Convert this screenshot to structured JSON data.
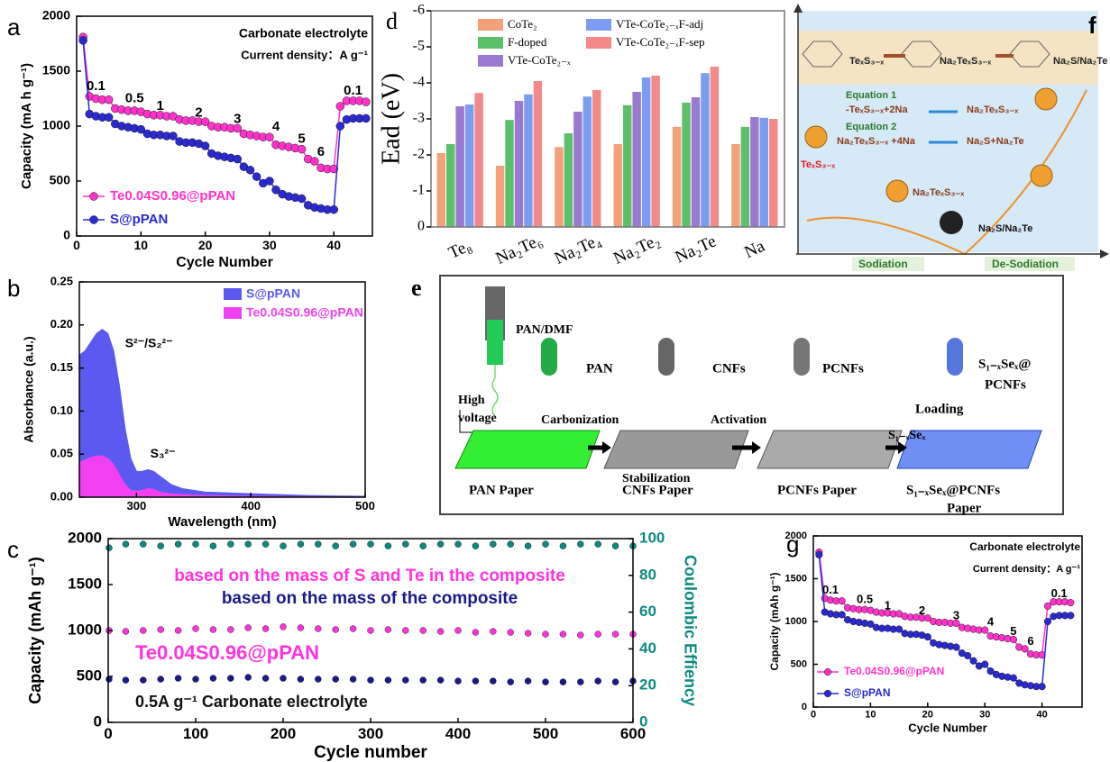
{
  "chart_data": [
    {
      "type": "line",
      "label": "a",
      "title": "Carbonate electrolyte",
      "subtitle": "Current density：A g⁻¹",
      "xlabel": "Cycle Number",
      "ylabel": "Capacity (mA h g⁻¹)",
      "x": [
        1,
        2,
        3,
        4,
        5,
        6,
        7,
        8,
        9,
        10,
        11,
        12,
        13,
        14,
        15,
        16,
        17,
        18,
        19,
        20,
        21,
        22,
        23,
        24,
        25,
        26,
        27,
        28,
        29,
        30,
        31,
        32,
        33,
        34,
        35,
        36,
        37,
        38,
        39,
        40,
        41,
        42,
        43,
        44,
        45
      ],
      "series": [
        {
          "name": "Te0.04S0.96@pPAN",
          "color": "#ff33cc",
          "values": [
            1810,
            1270,
            1250,
            1240,
            1240,
            1160,
            1150,
            1140,
            1140,
            1130,
            1110,
            1100,
            1100,
            1090,
            1090,
            1060,
            1050,
            1050,
            1040,
            1040,
            1000,
            990,
            990,
            980,
            980,
            930,
            920,
            910,
            900,
            900,
            830,
            820,
            810,
            800,
            790,
            700,
            680,
            620,
            610,
            610,
            1180,
            1230,
            1230,
            1230,
            1220
          ]
        },
        {
          "name": "S@pPAN",
          "color": "#2a2ad0",
          "values": [
            1780,
            1110,
            1090,
            1080,
            1080,
            1020,
            1000,
            990,
            980,
            970,
            930,
            920,
            920,
            910,
            910,
            860,
            850,
            850,
            840,
            820,
            750,
            730,
            720,
            710,
            700,
            630,
            600,
            540,
            480,
            500,
            420,
            380,
            360,
            350,
            340,
            280,
            260,
            250,
            240,
            240,
            1000,
            1060,
            1070,
            1070,
            1070
          ]
        }
      ],
      "annotations": [
        "0.1",
        "0.5",
        "1",
        "2",
        "3",
        "4",
        "5",
        "6",
        "0.1"
      ],
      "xlim": [
        0,
        46
      ],
      "xticks": [
        0,
        10,
        20,
        30,
        40
      ],
      "ylim": [
        0,
        2000
      ],
      "yticks": [
        0,
        500,
        1000,
        1500,
        2000
      ]
    },
    {
      "type": "area",
      "label": "b",
      "xlabel": "Wavelength (nm)",
      "ylabel": "Absorbance (a.u.)",
      "x": [
        250,
        255,
        260,
        265,
        270,
        275,
        280,
        285,
        290,
        295,
        300,
        305,
        310,
        315,
        320,
        330,
        340,
        360,
        400,
        450,
        500
      ],
      "series": [
        {
          "name": "S@pPAN",
          "color": "#5a5af0",
          "values": [
            0.165,
            0.17,
            0.18,
            0.19,
            0.195,
            0.19,
            0.17,
            0.13,
            0.08,
            0.045,
            0.03,
            0.03,
            0.032,
            0.03,
            0.025,
            0.015,
            0.01,
            0.006,
            0.004,
            0.002,
            0.001
          ]
        },
        {
          "name": "Te0.04S0.96@pPAN",
          "color": "#f040f0",
          "values": [
            0.04,
            0.043,
            0.046,
            0.048,
            0.048,
            0.045,
            0.038,
            0.026,
            0.015,
            0.008,
            0.007,
            0.008,
            0.01,
            0.009,
            0.006,
            0.004,
            0.003,
            0.002,
            0.001,
            0.0005,
            0
          ]
        }
      ],
      "annotations": [
        "S²⁻/S₂²⁻",
        "S₃²⁻"
      ],
      "xlim": [
        250,
        500
      ],
      "xticks": [
        300,
        400,
        500
      ],
      "ylim": [
        0,
        0.25
      ],
      "yticks": [
        {
          "value": 0,
          "label": "0.00"
        },
        0.05,
        {
          "value": 0.1,
          "label": "0.10"
        },
        0.15,
        {
          "value": 0.2,
          "label": "0.20"
        },
        0.25
      ]
    },
    {
      "type": "scatter",
      "label": "c",
      "xlabel": "Cycle number",
      "ylabel": "Capacity (mAh g⁻¹)",
      "y2label": "Coulombic Effiency",
      "x": [
        1,
        20,
        40,
        60,
        80,
        100,
        120,
        140,
        160,
        180,
        200,
        220,
        240,
        260,
        280,
        300,
        320,
        340,
        360,
        380,
        400,
        420,
        440,
        460,
        480,
        500,
        520,
        540,
        560,
        580,
        600
      ],
      "series": [
        {
          "name": "based on the mass of S and Te in the composite",
          "color": "#ff33dd",
          "values": [
            1000,
            990,
            1000,
            1010,
            1000,
            1020,
            1010,
            1010,
            1030,
            1020,
            1040,
            1030,
            1020,
            1010,
            1020,
            1000,
            1010,
            1000,
            1000,
            990,
            1000,
            980,
            990,
            980,
            970,
            960,
            960,
            950,
            960,
            960,
            960
          ]
        },
        {
          "name": "based on the mass of the composite",
          "color": "#1a1a8c",
          "values": [
            470,
            460,
            460,
            470,
            480,
            470,
            480,
            480,
            490,
            480,
            480,
            470,
            470,
            470,
            470,
            460,
            460,
            460,
            460,
            460,
            450,
            450,
            450,
            440,
            450,
            440,
            440,
            440,
            450,
            440,
            450
          ]
        },
        {
          "color": "#0a8a80",
          "axis": "y2",
          "values": [
            95,
            97,
            97,
            96,
            97,
            97,
            96,
            97,
            97,
            97,
            96,
            97,
            97,
            96,
            97,
            97,
            96,
            97,
            96,
            97,
            97,
            96,
            97,
            97,
            96,
            97,
            96,
            97,
            97,
            96,
            96
          ]
        }
      ],
      "annotations": [
        "Te0.04S0.96@pPAN",
        "0.5A g⁻¹ Carbonate electrolyte"
      ],
      "xlim": [
        0,
        600
      ],
      "xticks": [
        0,
        100,
        200,
        300,
        400,
        500,
        600
      ],
      "ylim": [
        0,
        2000
      ],
      "yticks": [
        0,
        500,
        1000,
        1500,
        2000
      ],
      "y2lim": [
        0,
        100
      ],
      "y2ticks": [
        0,
        20,
        40,
        60,
        80,
        100
      ]
    },
    {
      "type": "bar",
      "label": "d",
      "ylabel": "Ead (eV)",
      "categories": [
        "Te₈",
        "Na₂Te₆",
        "Na₂Te₄",
        "Na₂Te₂",
        "Na₂Te",
        "Na"
      ],
      "series": [
        {
          "name": "CoTe₂",
          "color": "#f4a07a",
          "values": [
            -2.05,
            -1.7,
            -2.22,
            -2.3,
            -2.78,
            -2.3
          ]
        },
        {
          "name": "F-doped",
          "color": "#5cbf6a",
          "values": [
            -2.3,
            -2.97,
            -2.6,
            -3.38,
            -3.45,
            -2.78
          ]
        },
        {
          "name": "VTe-CoTe₂₋ₓ",
          "color": "#9a7ad0",
          "values": [
            -3.35,
            -3.5,
            -3.2,
            -3.75,
            -3.6,
            -3.05
          ]
        },
        {
          "name": "VTe-CoTe₂₋ₓF-adj",
          "color": "#7b9cf0",
          "values": [
            -3.4,
            -3.68,
            -3.62,
            -4.15,
            -4.27,
            -3.03
          ]
        },
        {
          "name": "VTe-CoTe₂₋ₓF-sep",
          "color": "#f28a8a",
          "values": [
            -3.72,
            -4.05,
            -3.8,
            -4.2,
            -4.45,
            -3.0
          ]
        }
      ],
      "ylim": [
        0,
        -6
      ],
      "yticks": [
        0,
        -1,
        -2,
        -3,
        -4,
        -5,
        -6
      ]
    },
    {
      "type": "line",
      "label": "g",
      "title": "Carbonate electrolyte",
      "subtitle": "Current density：A g⁻¹",
      "xlabel": "Cycle Number",
      "ylabel": "Capacity (mAh g⁻¹)",
      "x": [
        1,
        2,
        3,
        4,
        5,
        6,
        7,
        8,
        9,
        10,
        11,
        12,
        13,
        14,
        15,
        16,
        17,
        18,
        19,
        20,
        21,
        22,
        23,
        24,
        25,
        26,
        27,
        28,
        29,
        30,
        31,
        32,
        33,
        34,
        35,
        36,
        37,
        38,
        39,
        40,
        41,
        42,
        43,
        44,
        45
      ],
      "series": [
        {
          "name": "Te0.04S0.96@pPAN",
          "color": "#ff33cc",
          "values": [
            1810,
            1270,
            1250,
            1240,
            1240,
            1160,
            1150,
            1140,
            1140,
            1130,
            1110,
            1100,
            1100,
            1090,
            1090,
            1060,
            1050,
            1050,
            1040,
            1040,
            1000,
            990,
            990,
            980,
            980,
            930,
            920,
            910,
            900,
            900,
            830,
            820,
            810,
            800,
            790,
            700,
            680,
            620,
            610,
            610,
            1180,
            1230,
            1230,
            1230,
            1220
          ]
        },
        {
          "name": "S@pPAN",
          "color": "#2a2ad0",
          "values": [
            1780,
            1110,
            1090,
            1080,
            1080,
            1020,
            1000,
            990,
            980,
            970,
            930,
            920,
            920,
            910,
            910,
            860,
            850,
            850,
            840,
            820,
            750,
            730,
            720,
            710,
            700,
            630,
            600,
            540,
            480,
            500,
            420,
            380,
            360,
            350,
            340,
            280,
            260,
            250,
            240,
            240,
            1000,
            1060,
            1070,
            1070,
            1070
          ]
        }
      ],
      "annotations": [
        "0.1",
        "0.5",
        "1",
        "2",
        "3",
        "4",
        "5",
        "6",
        "0.1"
      ],
      "xlim": [
        0,
        47
      ],
      "xticks": [
        0,
        10,
        20,
        30,
        40
      ],
      "ylim": [
        0,
        2000
      ],
      "yticks": [
        0,
        500,
        1000,
        1500,
        2000
      ]
    }
  ],
  "schematic_e": {
    "label": "e",
    "labels": [
      "PAN/DMF",
      "PAN",
      "CNFs",
      "PCNFs",
      "S₁₋ₓSeₓ@",
      "PCNFs",
      "High",
      "voltage",
      "Carbonization",
      "Activation",
      "Loading",
      "S₁₋ₓSeₓ",
      "Stabilization",
      "PAN Paper",
      "CNFs Paper",
      "PCNFs Paper",
      "S₁₋ₓSeₓ@PCNFs",
      "Paper"
    ]
  },
  "schematic_f": {
    "label": "f",
    "labels": [
      "TeₓS₃₋ₓ",
      "Na₂TeₓS₃₋ₓ",
      "Na₂S/Na₂Te",
      "Equation 1",
      "-TeₓS₃₋ₓ+2Na",
      "Na₂TeₓS₃₋ₓ",
      "Equation 2",
      "Na₂TeₓS₃₋ₓ +4Na",
      "Na₂S+Na₂Te",
      "TeₓS₃₋ₓ",
      "Na₂TeₓS₃₋ₓ",
      "Na₂S/Na₂Te",
      "Sodiation",
      "De-Sodiation"
    ]
  }
}
